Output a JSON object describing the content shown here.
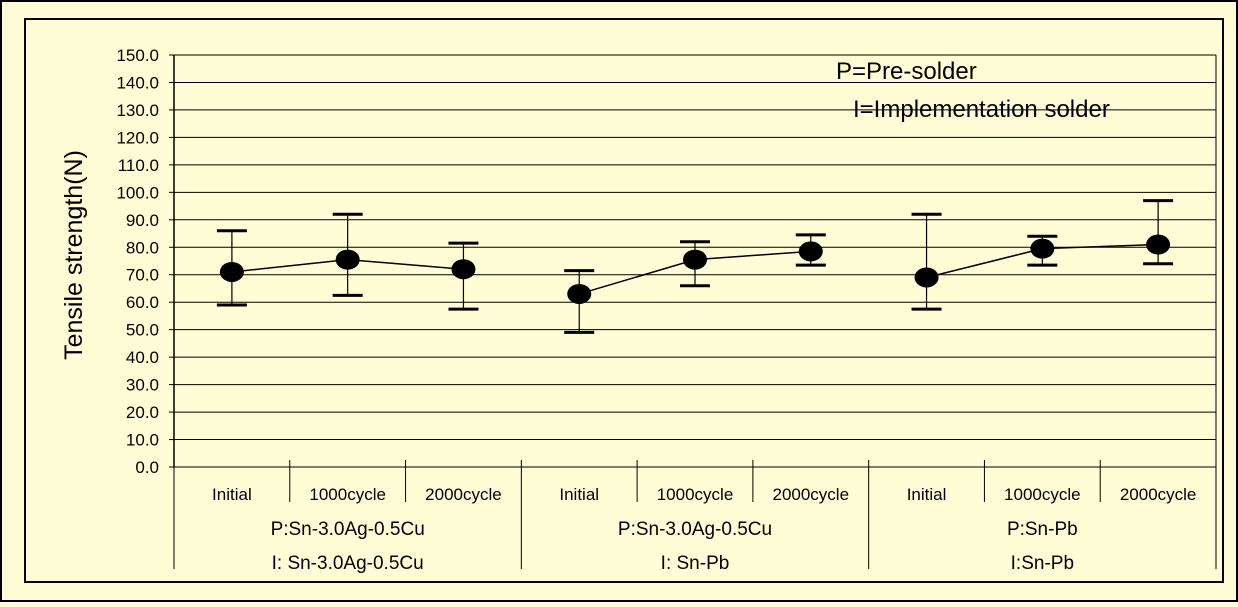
{
  "colors": {
    "background": "#fffdd6",
    "marker": "#000000",
    "lines": "#000000"
  },
  "chart_data": {
    "type": "scatter",
    "ylabel": "Tensile strength(N)",
    "ylim": [
      0,
      150
    ],
    "yticks": [
      "0.0",
      "10.0",
      "20.0",
      "30.0",
      "40.0",
      "50.0",
      "60.0",
      "70.0",
      "80.0",
      "90.0",
      "100.0",
      "110.0",
      "120.0",
      "130.0",
      "140.0",
      "150.0"
    ],
    "grid": true,
    "annotations": [
      "P=Pre-solder",
      "I=Implementation solder"
    ],
    "categories": [
      "Initial",
      "1000cycle",
      "2000cycle",
      "Initial",
      "1000cycle",
      "2000cycle",
      "Initial",
      "1000cycle",
      "2000cycle"
    ],
    "groups": [
      {
        "line1": "P:Sn-3.0Ag-0.5Cu",
        "line2": "I: Sn-3.0Ag-0.5Cu",
        "indices": [
          0,
          1,
          2
        ]
      },
      {
        "line1": "P:Sn-3.0Ag-0.5Cu",
        "line2": "I: Sn-Pb",
        "indices": [
          3,
          4,
          5
        ]
      },
      {
        "line1": "P:Sn-Pb",
        "line2": "I:Sn-Pb",
        "indices": [
          6,
          7,
          8
        ]
      }
    ],
    "values": [
      71,
      75.5,
      72,
      63,
      75.5,
      78.5,
      69,
      79.5,
      81
    ],
    "error_high": [
      86,
      92,
      81.5,
      71.5,
      82,
      84.5,
      92,
      84,
      97
    ],
    "error_low": [
      59,
      62.5,
      57.5,
      49,
      66,
      73.5,
      57.5,
      73.5,
      74
    ]
  }
}
